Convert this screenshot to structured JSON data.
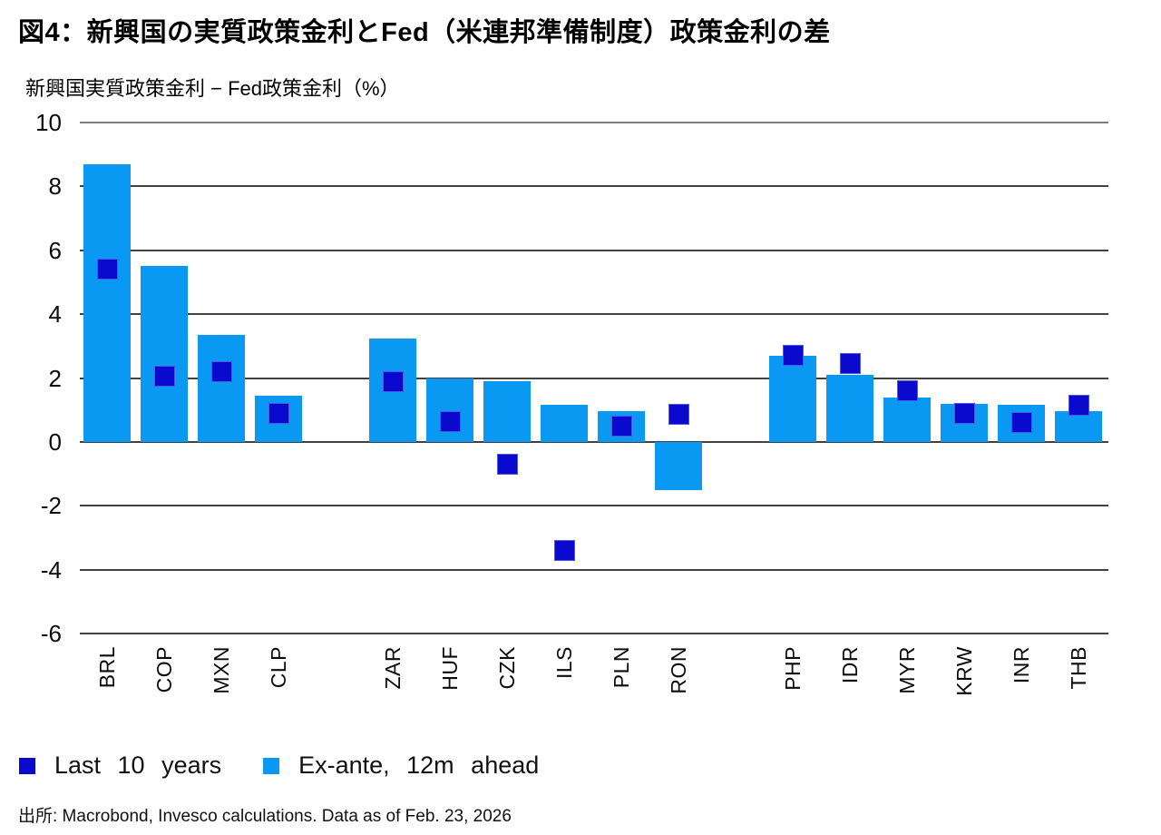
{
  "title": "図4：新興国の実質政策金利とFed（米連邦準備制度）政策金利の差",
  "subtitle": "新興国実質政策金利 − Fed政策金利（%）",
  "source": "出所: Macrobond, Invesco calculations. Data as of Feb. 23, 2026",
  "legend": [
    {
      "label": "Last 10 years",
      "marker": "square",
      "color": "#0a0acf"
    },
    {
      "label": "Ex-ante, 12m ahead",
      "marker": "square",
      "color": "#0a99f2"
    }
  ],
  "colors": {
    "bar_light_blue": "#0a99f2",
    "marker_dark_blue": "#0a0acf",
    "gridline": "#414141",
    "top_gridline": "#7d7d7d",
    "text": "#000000"
  },
  "chart_data": {
    "type": "bar",
    "title": "図4：新興国の実質政策金利とFed（米連邦準備制度）政策金利の差",
    "ylabel": "新興国実質政策金利 − Fed政策金利（%）",
    "xlabel": "",
    "categories": [
      "BRL",
      "COP",
      "MXN",
      "CLP",
      "ZAR",
      "HUF",
      "CZK",
      "ILS",
      "PLN",
      "RON",
      "PHP",
      "IDR",
      "MYR",
      "KRW",
      "INR",
      "THB"
    ],
    "groups": [
      [
        "BRL",
        "COP",
        "MXN",
        "CLP"
      ],
      [
        "ZAR",
        "HUF",
        "CZK",
        "ILS",
        "PLN",
        "RON"
      ],
      [
        "PHP",
        "IDR",
        "MYR",
        "KRW",
        "INR",
        "THB"
      ]
    ],
    "series": [
      {
        "name": "Ex-ante, 12m ahead",
        "render": "bar",
        "color": "#0a99f2",
        "values": [
          8.7,
          5.5,
          3.35,
          1.45,
          3.25,
          2.0,
          1.9,
          1.15,
          0.95,
          -1.5,
          2.7,
          2.1,
          1.4,
          1.2,
          1.15,
          0.95
        ]
      },
      {
        "name": "Last 10 years",
        "render": "square-marker",
        "color": "#0a0acf",
        "values": [
          5.4,
          2.05,
          2.2,
          0.9,
          1.9,
          0.65,
          -0.7,
          -3.4,
          0.5,
          0.85,
          2.7,
          2.45,
          1.6,
          0.9,
          0.6,
          1.15
        ]
      }
    ],
    "ylim": [
      -6,
      10
    ],
    "yticks": [
      10,
      8,
      6,
      4,
      2,
      0,
      -2,
      -4,
      -6
    ],
    "grid": true,
    "legend_position": "bottom-left"
  }
}
